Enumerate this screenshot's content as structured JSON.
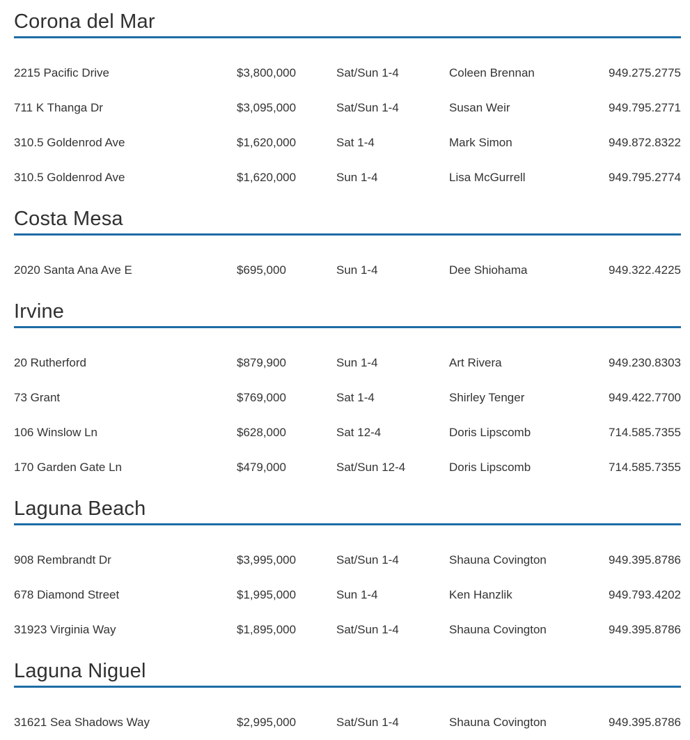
{
  "document_title": "open-house-listings",
  "columns": [
    "address",
    "price",
    "time",
    "agent",
    "phone"
  ],
  "accent_color": "#1e6da6",
  "text_color": "#333333",
  "sections": [
    {
      "name": "Corona del Mar",
      "listings": [
        {
          "address": "2215 Pacific Drive",
          "price": "$3,800,000",
          "time": "Sat/Sun 1-4",
          "agent": "Coleen Brennan",
          "phone": "949.275.2775"
        },
        {
          "address": "711 K Thanga Dr",
          "price": "$3,095,000",
          "time": "Sat/Sun 1-4",
          "agent": "Susan Weir",
          "phone": "949.795.2771"
        },
        {
          "address": "310.5 Goldenrod Ave",
          "price": "$1,620,000",
          "time": "Sat 1-4",
          "agent": "Mark Simon",
          "phone": "949.872.8322"
        },
        {
          "address": "310.5 Goldenrod Ave",
          "price": "$1,620,000",
          "time": "Sun 1-4",
          "agent": "Lisa McGurrell",
          "phone": "949.795.2774"
        }
      ]
    },
    {
      "name": "Costa Mesa",
      "listings": [
        {
          "address": "2020 Santa Ana Ave E",
          "price": "$695,000",
          "time": "Sun 1-4",
          "agent": "Dee Shiohama",
          "phone": "949.322.4225"
        }
      ]
    },
    {
      "name": "Irvine",
      "listings": [
        {
          "address": "20 Rutherford",
          "price": "$879,900",
          "time": "Sun 1-4",
          "agent": "Art Rivera",
          "phone": "949.230.8303"
        },
        {
          "address": "73 Grant",
          "price": "$769,000",
          "time": "Sat 1-4",
          "agent": "Shirley Tenger",
          "phone": "949.422.7700"
        },
        {
          "address": "106 Winslow Ln",
          "price": "$628,000",
          "time": "Sat 12-4",
          "agent": "Doris Lipscomb",
          "phone": "714.585.7355"
        },
        {
          "address": "170 Garden Gate Ln",
          "price": "$479,000",
          "time": "Sat/Sun 12-4",
          "agent": "Doris Lipscomb",
          "phone": "714.585.7355"
        }
      ]
    },
    {
      "name": "Laguna Beach",
      "listings": [
        {
          "address": "908 Rembrandt Dr",
          "price": "$3,995,000",
          "time": "Sat/Sun 1-4",
          "agent": "Shauna Covington",
          "phone": "949.395.8786"
        },
        {
          "address": "678 Diamond Street",
          "price": "$1,995,000",
          "time": "Sun 1-4",
          "agent": "Ken Hanzlik",
          "phone": "949.793.4202"
        },
        {
          "address": "31923 Virginia Way",
          "price": "$1,895,000",
          "time": "Sat/Sun 1-4",
          "agent": "Shauna Covington",
          "phone": "949.395.8786"
        }
      ]
    },
    {
      "name": "Laguna Niguel",
      "listings": [
        {
          "address": "31621 Sea Shadows Way",
          "price": "$2,995,000",
          "time": "Sat/Sun 1-4",
          "agent": "Shauna Covington",
          "phone": "949.395.8786"
        }
      ]
    }
  ]
}
